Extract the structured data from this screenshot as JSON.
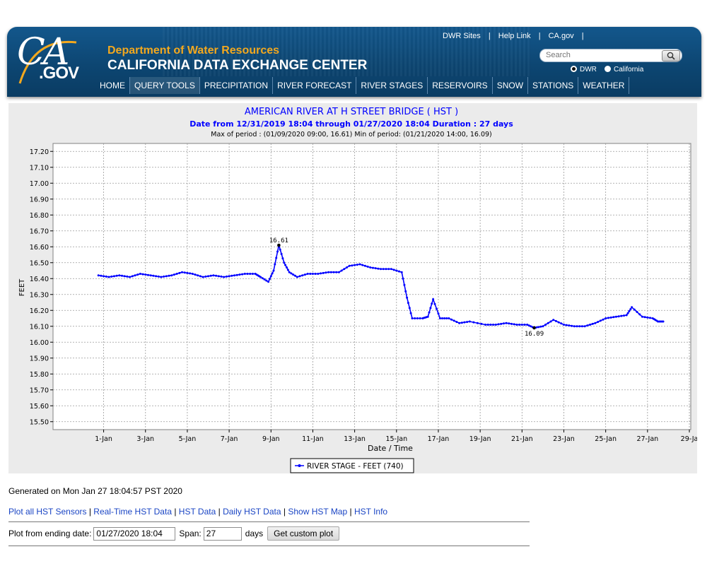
{
  "header": {
    "logo_ca": "CA",
    "logo_gov": ".GOV",
    "department": "Department of Water Resources",
    "center": "CALIFORNIA DATA EXCHANGE CENTER",
    "top_links": [
      "DWR Sites",
      "Help Link",
      "CA.gov"
    ],
    "search_placeholder": "Search",
    "radio_options": [
      {
        "label": "DWR",
        "selected": true
      },
      {
        "label": "California",
        "selected": false
      }
    ],
    "nav": [
      "HOME",
      "QUERY TOOLS",
      "PRECIPITATION",
      "RIVER FORECAST",
      "RIVER STAGES",
      "RESERVOIRS",
      "SNOW",
      "STATIONS",
      "WEATHER"
    ],
    "nav_active": "QUERY TOOLS",
    "colors": {
      "header_blue": "#0d4672",
      "dept_orange": "#f3a81e",
      "nav_text": "#ffffff"
    }
  },
  "chart_data": {
    "type": "line",
    "title": "AMERICAN RIVER AT H STREET BRIDGE ( HST )",
    "subtitle": "Date from 12/31/2019 18:04 through 01/27/2020 18:04 Duration : 27 days",
    "summary": "Max of period : (01/09/2020 09:00, 16.61)  Min of period: (01/21/2020 14:00,  16.09)",
    "xlabel": "Date / Time",
    "ylabel": "FEET",
    "x_range": [
      "2019-12-31",
      "2020-01-29"
    ],
    "ylim": [
      15.45,
      17.25
    ],
    "yticks": [
      "15.50",
      "15.60",
      "15.70",
      "15.80",
      "15.90",
      "16.00",
      "16.10",
      "16.20",
      "16.30",
      "16.40",
      "16.50",
      "16.60",
      "16.70",
      "16.80",
      "16.90",
      "17.00",
      "17.10",
      "17.20"
    ],
    "xticks": [
      "1-Jan",
      "3-Jan",
      "5-Jan",
      "7-Jan",
      "9-Jan",
      "11-Jan",
      "13-Jan",
      "15-Jan",
      "17-Jan",
      "19-Jan",
      "21-Jan",
      "23-Jan",
      "25-Jan",
      "27-Jan",
      "29-Ja"
    ],
    "grid": true,
    "legend_position": "bottom-center",
    "annotations": [
      {
        "x": "2020-01-09 09:00",
        "y": 16.61,
        "text": "16.61"
      },
      {
        "x": "2020-01-21 14:00",
        "y": 16.09,
        "text": "16.09"
      }
    ],
    "series": [
      {
        "name": "RIVER STAGE - FEET (740)",
        "color": "#0000ff",
        "points": [
          [
            "2019-12-31 18:00",
            16.42
          ],
          [
            "2020-01-01 06:00",
            16.41
          ],
          [
            "2020-01-01 18:00",
            16.42
          ],
          [
            "2020-01-02 06:00",
            16.41
          ],
          [
            "2020-01-02 18:00",
            16.43
          ],
          [
            "2020-01-03 06:00",
            16.42
          ],
          [
            "2020-01-03 18:00",
            16.41
          ],
          [
            "2020-01-04 06:00",
            16.42
          ],
          [
            "2020-01-04 18:00",
            16.44
          ],
          [
            "2020-01-05 06:00",
            16.43
          ],
          [
            "2020-01-05 18:00",
            16.41
          ],
          [
            "2020-01-06 06:00",
            16.42
          ],
          [
            "2020-01-06 18:00",
            16.41
          ],
          [
            "2020-01-07 06:00",
            16.42
          ],
          [
            "2020-01-07 18:00",
            16.43
          ],
          [
            "2020-01-08 06:00",
            16.43
          ],
          [
            "2020-01-08 12:00",
            16.41
          ],
          [
            "2020-01-08 21:00",
            16.38
          ],
          [
            "2020-01-09 03:00",
            16.45
          ],
          [
            "2020-01-09 09:00",
            16.61
          ],
          [
            "2020-01-09 15:00",
            16.5
          ],
          [
            "2020-01-09 21:00",
            16.44
          ],
          [
            "2020-01-10 06:00",
            16.41
          ],
          [
            "2020-01-10 18:00",
            16.43
          ],
          [
            "2020-01-11 06:00",
            16.43
          ],
          [
            "2020-01-11 18:00",
            16.44
          ],
          [
            "2020-01-12 06:00",
            16.44
          ],
          [
            "2020-01-12 18:00",
            16.48
          ],
          [
            "2020-01-13 06:00",
            16.49
          ],
          [
            "2020-01-13 18:00",
            16.47
          ],
          [
            "2020-01-14 06:00",
            16.46
          ],
          [
            "2020-01-14 18:00",
            16.46
          ],
          [
            "2020-01-15 06:00",
            16.44
          ],
          [
            "2020-01-15 12:00",
            16.28
          ],
          [
            "2020-01-15 18:00",
            16.15
          ],
          [
            "2020-01-16 06:00",
            16.15
          ],
          [
            "2020-01-16 12:00",
            16.16
          ],
          [
            "2020-01-16 18:00",
            16.27
          ],
          [
            "2020-01-17 02:00",
            16.15
          ],
          [
            "2020-01-17 12:00",
            16.15
          ],
          [
            "2020-01-18 00:00",
            16.12
          ],
          [
            "2020-01-18 12:00",
            16.13
          ],
          [
            "2020-01-19 06:00",
            16.11
          ],
          [
            "2020-01-19 18:00",
            16.11
          ],
          [
            "2020-01-20 06:00",
            16.12
          ],
          [
            "2020-01-20 18:00",
            16.11
          ],
          [
            "2020-01-21 06:00",
            16.11
          ],
          [
            "2020-01-21 14:00",
            16.09
          ],
          [
            "2020-01-22 00:00",
            16.1
          ],
          [
            "2020-01-22 12:00",
            16.14
          ],
          [
            "2020-01-23 00:00",
            16.11
          ],
          [
            "2020-01-23 12:00",
            16.1
          ],
          [
            "2020-01-24 00:00",
            16.1
          ],
          [
            "2020-01-24 12:00",
            16.12
          ],
          [
            "2020-01-25 00:00",
            16.15
          ],
          [
            "2020-01-25 12:00",
            16.16
          ],
          [
            "2020-01-26 00:00",
            16.17
          ],
          [
            "2020-01-26 06:00",
            16.22
          ],
          [
            "2020-01-26 18:00",
            16.16
          ],
          [
            "2020-01-27 06:00",
            16.15
          ],
          [
            "2020-01-27 12:00",
            16.13
          ],
          [
            "2020-01-27 18:00",
            16.13
          ]
        ]
      }
    ]
  },
  "footer": {
    "generated": "Generated on Mon Jan 27 18:04:57 PST 2020",
    "links": [
      "Plot all HST Sensors",
      "Real-Time HST Data",
      "HST Data",
      "Daily HST Data",
      "Show HST Map",
      "HST Info"
    ],
    "form": {
      "ending_date_label": "Plot from ending date:",
      "ending_date_value": "01/27/2020 18:04",
      "span_label": "Span:",
      "span_value": "27",
      "days_label": "days",
      "button_label": "Get custom plot"
    }
  }
}
